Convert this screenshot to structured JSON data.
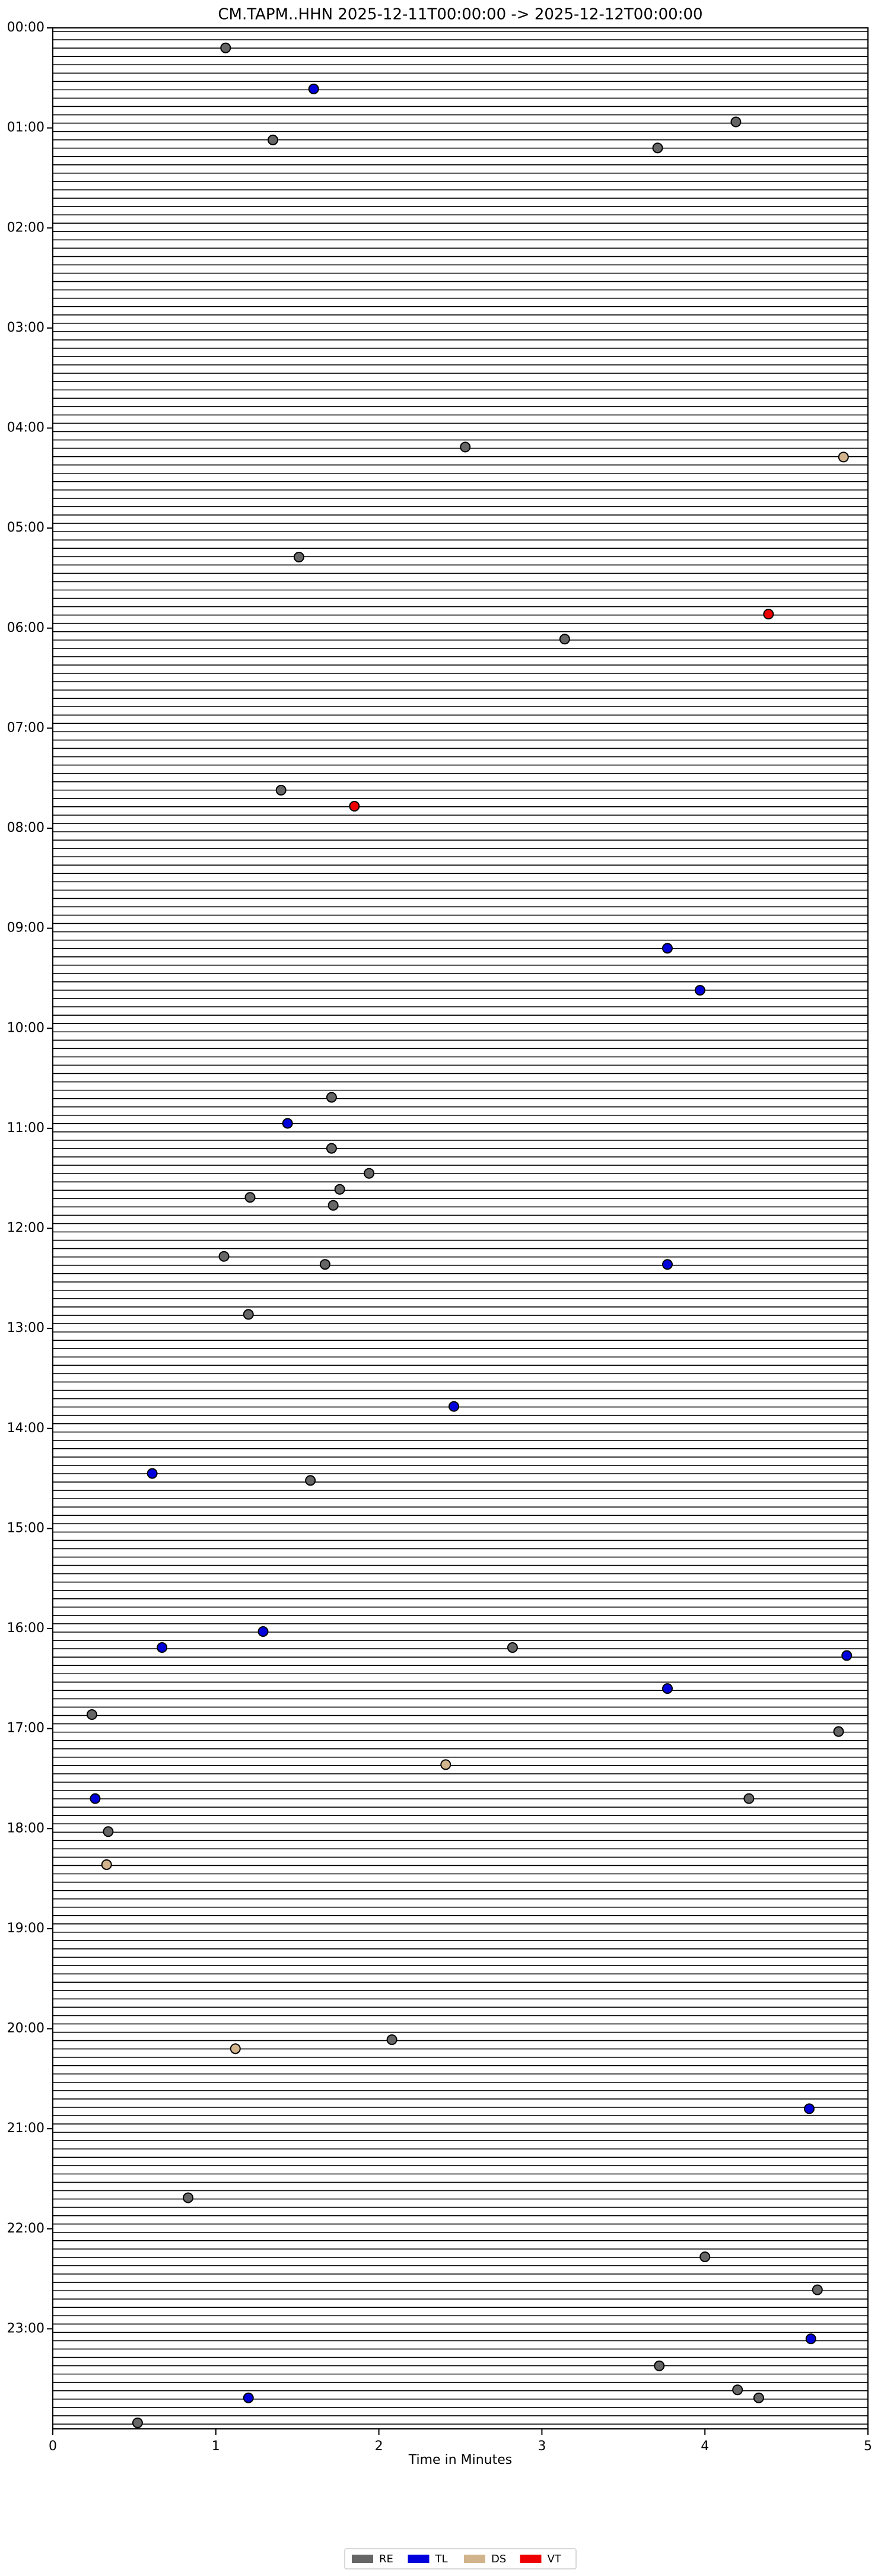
{
  "chart_data": {
    "type": "scatter",
    "title": "CM.TAPM..HHN  2025-12-11T00:00:00 -> 2025-12-12T00:00:00",
    "x_label": "Time in Minutes",
    "xlim": [
      0,
      5
    ],
    "xticks": [
      0,
      1,
      2,
      3,
      4,
      5
    ],
    "ylim": [
      24,
      0
    ],
    "yticks": [
      {
        "value": 0,
        "label": "00:00"
      },
      {
        "value": 1,
        "label": "01:00"
      },
      {
        "value": 2,
        "label": "02:00"
      },
      {
        "value": 3,
        "label": "03:00"
      },
      {
        "value": 4,
        "label": "04:00"
      },
      {
        "value": 5,
        "label": "05:00"
      },
      {
        "value": 6,
        "label": "06:00"
      },
      {
        "value": 7,
        "label": "07:00"
      },
      {
        "value": 8,
        "label": "08:00"
      },
      {
        "value": 9,
        "label": "09:00"
      },
      {
        "value": 10,
        "label": "10:00"
      },
      {
        "value": 11,
        "label": "11:00"
      },
      {
        "value": 12,
        "label": "12:00"
      },
      {
        "value": 13,
        "label": "13:00"
      },
      {
        "value": 14,
        "label": "14:00"
      },
      {
        "value": 15,
        "label": "15:00"
      },
      {
        "value": 16,
        "label": "16:00"
      },
      {
        "value": 17,
        "label": "17:00"
      },
      {
        "value": 18,
        "label": "18:00"
      },
      {
        "value": 19,
        "label": "19:00"
      },
      {
        "value": 20,
        "label": "20:00"
      },
      {
        "value": 21,
        "label": "21:00"
      },
      {
        "value": 22,
        "label": "22:00"
      },
      {
        "value": 23,
        "label": "23:00"
      }
    ],
    "legend": "bottom",
    "series": [
      {
        "name": "RE",
        "color": "#666666",
        "x": [
          1.06,
          4.19,
          1.35,
          3.71,
          2.53,
          1.51,
          3.14,
          1.4,
          1.71,
          1.71,
          1.94,
          1.76,
          1.21,
          1.72,
          1.05,
          1.67,
          1.2,
          1.58,
          2.82,
          0.24,
          4.82,
          4.27,
          0.34,
          2.08,
          0.83,
          4.0,
          4.69,
          3.72,
          4.2,
          4.33,
          0.52
        ],
        "values": [
          0.2,
          0.94,
          1.12,
          1.2,
          4.19,
          5.29,
          6.11,
          7.62,
          10.69,
          11.2,
          11.45,
          11.61,
          11.69,
          11.77,
          12.28,
          12.36,
          12.86,
          14.52,
          16.19,
          16.86,
          17.03,
          17.7,
          18.03,
          20.11,
          21.69,
          22.28,
          22.61,
          23.37,
          23.61,
          23.69,
          23.94
        ]
      },
      {
        "name": "TL",
        "color": "#0000dd",
        "x": [
          1.6,
          3.77,
          3.97,
          1.44,
          3.77,
          2.46,
          0.61,
          1.29,
          0.67,
          4.87,
          3.77,
          0.26,
          4.64,
          4.65,
          1.2
        ],
        "values": [
          0.61,
          9.2,
          9.62,
          10.95,
          12.36,
          13.78,
          14.45,
          16.03,
          16.19,
          16.27,
          16.6,
          17.7,
          20.8,
          23.1,
          23.69
        ]
      },
      {
        "name": "DS",
        "color": "#d2b48c",
        "x": [
          4.85,
          2.41,
          0.33,
          1.12
        ],
        "values": [
          4.29,
          17.36,
          18.36,
          20.2
        ]
      },
      {
        "name": "VT",
        "color": "#ee0000",
        "x": [
          4.39,
          1.85
        ],
        "values": [
          5.86,
          7.78
        ]
      }
    ]
  }
}
